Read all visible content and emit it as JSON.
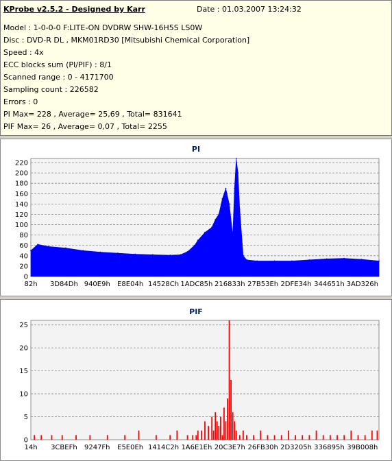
{
  "info": {
    "title": "KProbe v2.5.2 - Designed by Karr",
    "date": "Date : 01.03.2007 13:24:32",
    "lines": [
      "Model : 1-0-0-0 F:LITE-ON DVDRW SHW-16H5S  LS0W",
      "Disc : DVD-R DL , MKM01RD30 [Mitsubishi Chemical Corporation]",
      "Speed : 4x",
      "ECC blocks sum (PI/PIF) : 8/1",
      "Scanned range : 0 - 4171700",
      "Sampling count : 226582",
      "Errors : 0",
      "PI Max= 228 , Average= 25,69 , Total= 831641",
      "PIF Max= 26 , Average= 0,07 , Total= 2255"
    ]
  },
  "colors": {
    "pi": "#0000ff",
    "pif": "#ff0000",
    "plot_bg": "#f3f3f3"
  },
  "chart_data": [
    {
      "type": "area",
      "title": "PI",
      "ylim": [
        0,
        228
      ],
      "yticks": [
        0,
        20,
        40,
        60,
        80,
        100,
        120,
        140,
        160,
        180,
        200,
        220
      ],
      "xticks": [
        "82h",
        "3D84Dh",
        "940E9h",
        "E8E04h",
        "14528Ch",
        "1ADC85h",
        "216833h",
        "27B53Eh",
        "2DFE34h",
        "344651h",
        "3AD326h"
      ],
      "grid": true,
      "series": [
        {
          "color": "#0000ff",
          "x": [
            0,
            0.02,
            0.05,
            0.1,
            0.15,
            0.2,
            0.25,
            0.3,
            0.35,
            0.4,
            0.43,
            0.45,
            0.47,
            0.48,
            0.5,
            0.52,
            0.53,
            0.54,
            0.55,
            0.56,
            0.57,
            0.58,
            0.585,
            0.59,
            0.595,
            0.6,
            0.61,
            0.62,
            0.65,
            0.7,
            0.75,
            0.8,
            0.85,
            0.9,
            0.95,
            1.0
          ],
          "values": [
            50,
            62,
            58,
            55,
            50,
            47,
            45,
            43,
            42,
            41,
            42,
            48,
            60,
            70,
            85,
            95,
            110,
            120,
            150,
            170,
            140,
            80,
            170,
            228,
            200,
            130,
            40,
            32,
            30,
            30,
            30,
            32,
            34,
            35,
            33,
            30
          ]
        }
      ]
    },
    {
      "type": "bar",
      "title": "PIF",
      "ylim": [
        0,
        26
      ],
      "yticks": [
        0,
        5,
        10,
        15,
        20,
        25
      ],
      "xticks": [
        "14h",
        "3CBEFh",
        "9247Fh",
        "E5E0Eh",
        "1414C2h",
        "1A6E1Eh",
        "20C3E7h",
        "26FB30h",
        "2D3205h",
        "336895h",
        "39B008h"
      ],
      "grid": true,
      "series": [
        {
          "color": "#ff0000",
          "x": [
            0.01,
            0.03,
            0.06,
            0.09,
            0.13,
            0.17,
            0.22,
            0.27,
            0.31,
            0.36,
            0.4,
            0.42,
            0.45,
            0.465,
            0.475,
            0.48,
            0.49,
            0.5,
            0.51,
            0.52,
            0.525,
            0.53,
            0.535,
            0.54,
            0.545,
            0.55,
            0.555,
            0.56,
            0.565,
            0.57,
            0.575,
            0.58,
            0.585,
            0.59,
            0.6,
            0.61,
            0.62,
            0.64,
            0.66,
            0.68,
            0.7,
            0.72,
            0.74,
            0.76,
            0.78,
            0.8,
            0.82,
            0.84,
            0.86,
            0.88,
            0.9,
            0.92,
            0.94,
            0.96,
            0.98,
            0.995
          ],
          "values": [
            1,
            1,
            1,
            1,
            1,
            1,
            1,
            1,
            2,
            1,
            1,
            2,
            1,
            1,
            1,
            2,
            2,
            4,
            3,
            5,
            2,
            6,
            4,
            3,
            5,
            1,
            7,
            4,
            9,
            26,
            13,
            6,
            4,
            2,
            1,
            2,
            1,
            1,
            2,
            1,
            1,
            1,
            2,
            1,
            1,
            1,
            2,
            1,
            1,
            1,
            1,
            2,
            1,
            1,
            2,
            2
          ]
        }
      ]
    }
  ]
}
